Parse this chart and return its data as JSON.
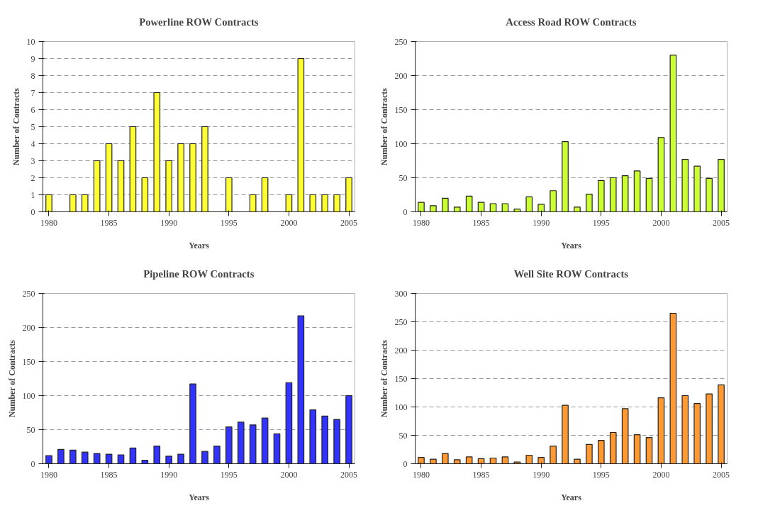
{
  "chart_data": [
    {
      "type": "bar",
      "title": "Powerline ROW Contracts",
      "xlabel": "Years",
      "ylabel": "Number of Contracts",
      "x": [
        1980,
        1981,
        1982,
        1983,
        1984,
        1985,
        1986,
        1987,
        1988,
        1989,
        1990,
        1991,
        1992,
        1993,
        1994,
        1995,
        1996,
        1997,
        1998,
        1999,
        2000,
        2001,
        2002,
        2003,
        2004,
        2005
      ],
      "values": [
        1,
        0,
        1,
        1,
        3,
        4,
        3,
        5,
        2,
        7,
        3,
        4,
        4,
        5,
        0,
        2,
        0,
        1,
        2,
        0,
        1,
        9,
        1,
        1,
        1,
        2
      ],
      "color": "#ffff33",
      "xlim": [
        1979.5,
        2005.5
      ],
      "xticks": [
        1980,
        1985,
        1990,
        1995,
        2000,
        2005
      ],
      "ylim": [
        0,
        10
      ],
      "yticks": [
        0,
        1,
        2,
        3,
        4,
        5,
        6,
        7,
        8,
        9,
        10
      ],
      "grid": "y"
    },
    {
      "type": "bar",
      "title": "Access Road ROW Contracts",
      "xlabel": "Years",
      "ylabel": "Number of Contracts",
      "x": [
        1980,
        1981,
        1982,
        1983,
        1984,
        1985,
        1986,
        1987,
        1988,
        1989,
        1990,
        1991,
        1992,
        1993,
        1994,
        1995,
        1996,
        1997,
        1998,
        1999,
        2000,
        2001,
        2002,
        2003,
        2004,
        2005
      ],
      "values": [
        14,
        9,
        20,
        7,
        23,
        14,
        12,
        12,
        4,
        22,
        11,
        31,
        103,
        7,
        26,
        46,
        50,
        53,
        60,
        49,
        109,
        230,
        77,
        67,
        49,
        77
      ],
      "color": "#ccff33",
      "xlim": [
        1979.5,
        2005.5
      ],
      "xticks": [
        1980,
        1985,
        1990,
        1995,
        2000,
        2005
      ],
      "ylim": [
        0,
        250
      ],
      "yticks": [
        0,
        50,
        100,
        150,
        200,
        250
      ],
      "grid": "y"
    },
    {
      "type": "bar",
      "title": "Pipeline ROW Contracts",
      "xlabel": "Years",
      "ylabel": "Number of Contracts",
      "x": [
        1980,
        1981,
        1982,
        1983,
        1984,
        1985,
        1986,
        1987,
        1988,
        1989,
        1990,
        1991,
        1992,
        1993,
        1994,
        1995,
        1996,
        1997,
        1998,
        1999,
        2000,
        2001,
        2002,
        2003,
        2004,
        2005
      ],
      "values": [
        12,
        21,
        20,
        17,
        15,
        14,
        13,
        23,
        5,
        26,
        11,
        14,
        117,
        18,
        26,
        54,
        61,
        57,
        67,
        44,
        119,
        217,
        79,
        70,
        65,
        100
      ],
      "color": "#3333ff",
      "xlim": [
        1979.5,
        2005.5
      ],
      "xticks": [
        1980,
        1985,
        1990,
        1995,
        2000,
        2005
      ],
      "ylim": [
        0,
        250
      ],
      "yticks": [
        0,
        50,
        100,
        150,
        200,
        250
      ],
      "grid": "y"
    },
    {
      "type": "bar",
      "title": "Well Site ROW Contracts",
      "xlabel": "Years",
      "ylabel": "Number of Contracts",
      "x": [
        1980,
        1981,
        1982,
        1983,
        1984,
        1985,
        1986,
        1987,
        1988,
        1989,
        1990,
        1991,
        1992,
        1993,
        1994,
        1995,
        1996,
        1997,
        1998,
        1999,
        2000,
        2001,
        2002,
        2003,
        2004,
        2005
      ],
      "values": [
        11,
        8,
        18,
        7,
        12,
        9,
        10,
        12,
        3,
        15,
        11,
        31,
        103,
        8,
        34,
        41,
        55,
        97,
        51,
        46,
        116,
        265,
        120,
        106,
        123,
        139
      ],
      "color": "#ff9933",
      "xlim": [
        1979.5,
        2005.5
      ],
      "xticks": [
        1980,
        1985,
        1990,
        1995,
        2000,
        2005
      ],
      "ylim": [
        0,
        300
      ],
      "yticks": [
        0,
        50,
        100,
        150,
        200,
        250,
        300
      ],
      "grid": "y"
    }
  ]
}
